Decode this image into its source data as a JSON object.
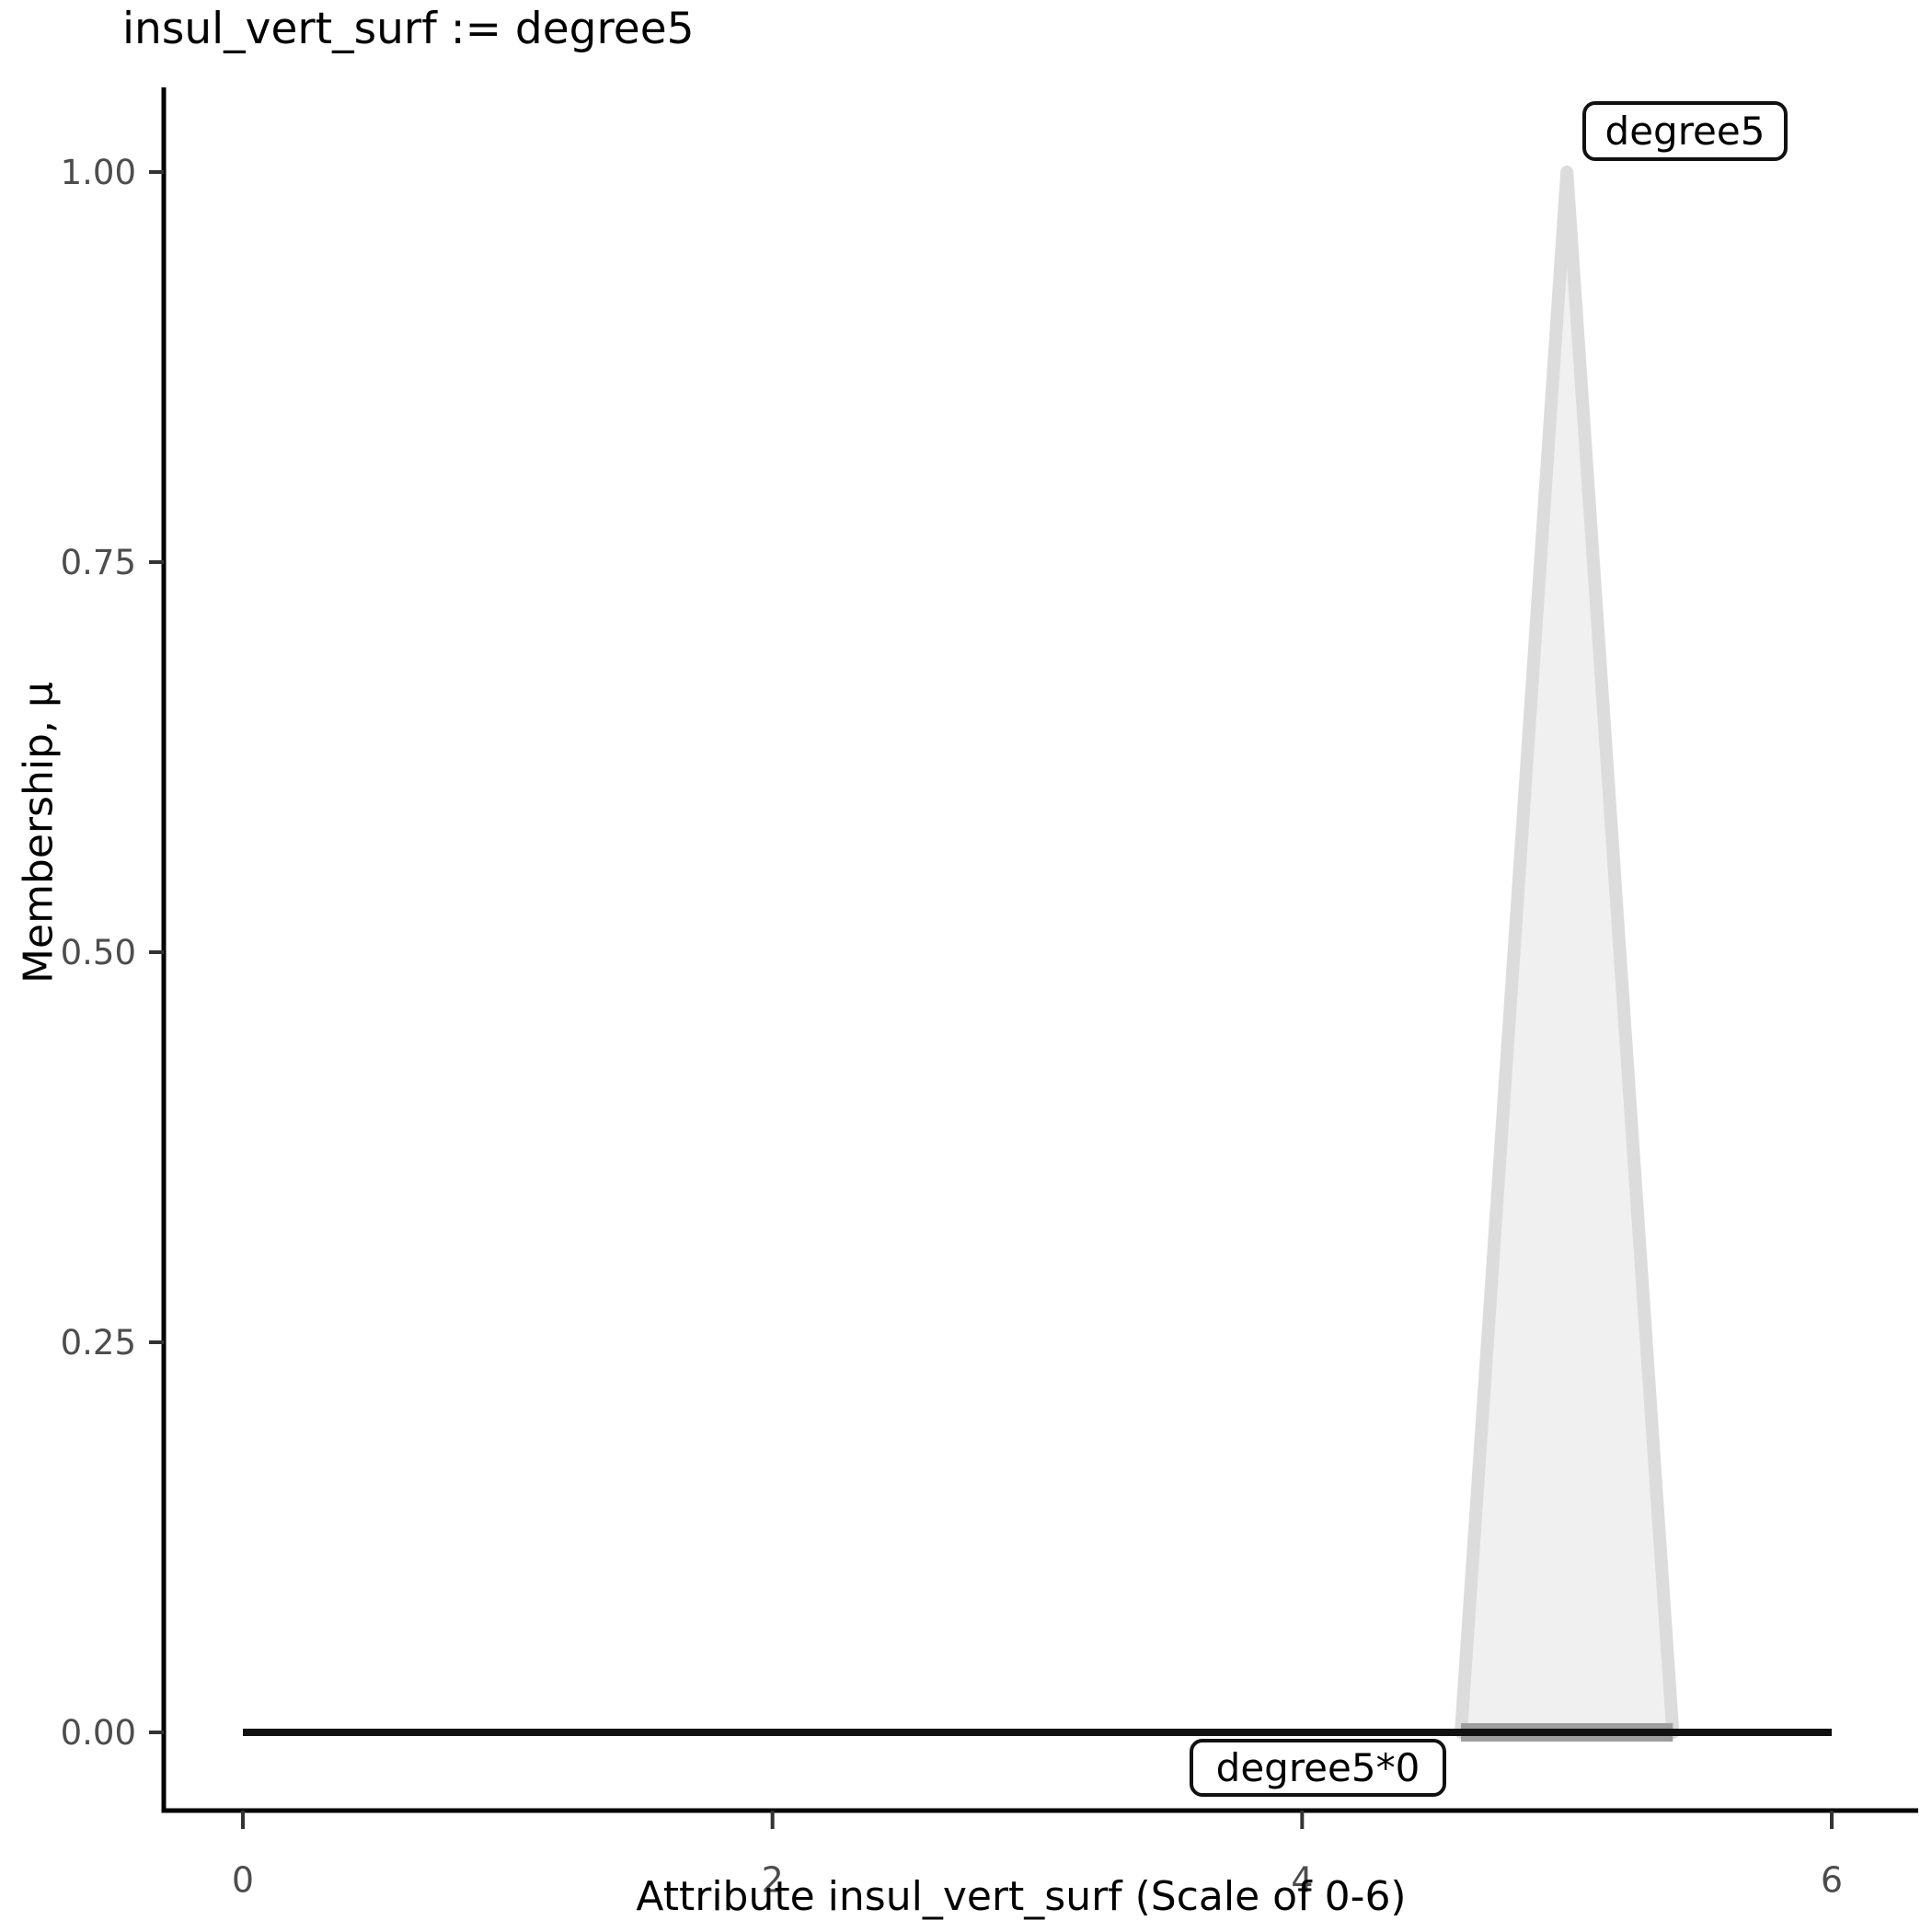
{
  "title": "insul_vert_surf := degree5",
  "colors": {
    "background": "#FFFFFF",
    "axis_line": "#000000",
    "tick_mark": "#333333",
    "tick_label": "#4D4D4D",
    "triangle_fill": "#F0F0F0",
    "triangle_stroke": "#DCDCDC",
    "base_band": "#9E9E9E",
    "zero_line": "#111111",
    "annotation_border": "#111111",
    "annotation_text": "#000000"
  },
  "chart_data": {
    "type": "area",
    "title": "insul_vert_surf := degree5",
    "xlabel": "Attribute insul_vert_surf (Scale of 0-6)",
    "ylabel": "Membership, μ",
    "xlim": [
      0,
      6
    ],
    "ylim": [
      0,
      1
    ],
    "x_ticks": [
      0,
      2,
      4,
      6
    ],
    "x_tick_labels": [
      "0",
      "2",
      "4",
      "6"
    ],
    "y_ticks": [
      0,
      0.25,
      0.5,
      0.75,
      1
    ],
    "y_tick_labels": [
      "0.00",
      "0.25",
      "0.50",
      "0.75",
      "1.00"
    ],
    "grid": false,
    "legend": "none",
    "series": [
      {
        "name": "degree5",
        "kind": "area",
        "points": [
          [
            4.6,
            0
          ],
          [
            5.0,
            1.0
          ],
          [
            5.4,
            0
          ]
        ],
        "fill": "#F0F0F0",
        "stroke": "#DCDCDC",
        "stroke_width": 14
      },
      {
        "name": "degree5-base-band",
        "kind": "line",
        "points": [
          [
            4.6,
            0
          ],
          [
            5.4,
            0
          ]
        ],
        "stroke": "#9E9E9E",
        "stroke_width": 20
      },
      {
        "name": "degree5*0",
        "kind": "line",
        "points": [
          [
            0,
            0
          ],
          [
            6,
            0
          ]
        ],
        "stroke": "#111111",
        "stroke_width": 8
      }
    ],
    "annotations": [
      {
        "text": "degree5",
        "anchor_x": 5.45,
        "anchor_y": 1.03
      },
      {
        "text": "degree5*0",
        "anchor_x": 4.06,
        "anchor_y": -0.02
      }
    ]
  }
}
